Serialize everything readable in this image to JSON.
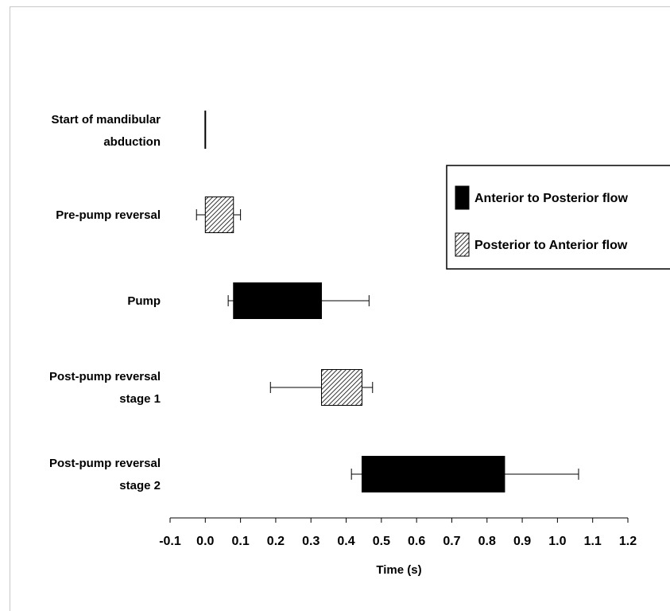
{
  "chart_data": {
    "type": "bar",
    "orientation": "horizontal",
    "title": "",
    "xlabel": "Time (s)",
    "ylabel": "",
    "xlim": [
      -0.1,
      1.2
    ],
    "xticks": [
      "-0.1",
      "0.0",
      "0.1",
      "0.2",
      "0.3",
      "0.4",
      "0.5",
      "0.6",
      "0.7",
      "0.8",
      "0.9",
      "1.0",
      "1.1",
      "1.2"
    ],
    "grid": false,
    "legend_position": "right",
    "categories": [
      {
        "label_lines": [
          "Start of mandibular",
          "abduction"
        ],
        "start": 0.0,
        "end": 0.0,
        "err_low": null,
        "err_high": null,
        "flow": "marker"
      },
      {
        "label_lines": [
          "Pre-pump reversal"
        ],
        "start": 0.0,
        "end": 0.08,
        "err_low": -0.025,
        "err_high": 0.1,
        "flow": "posterior_to_anterior"
      },
      {
        "label_lines": [
          "Pump"
        ],
        "start": 0.08,
        "end": 0.33,
        "err_low": 0.065,
        "err_high": 0.465,
        "flow": "anterior_to_posterior"
      },
      {
        "label_lines": [
          "Post-pump reversal",
          "stage 1"
        ],
        "start": 0.33,
        "end": 0.445,
        "err_low": 0.185,
        "err_high": 0.475,
        "flow": "posterior_to_anterior"
      },
      {
        "label_lines": [
          "Post-pump reversal",
          "stage 2"
        ],
        "start": 0.445,
        "end": 0.85,
        "err_low": 0.415,
        "err_high": 1.06,
        "flow": "anterior_to_posterior"
      }
    ],
    "legend": [
      {
        "key": "anterior_to_posterior",
        "label": "Anterior to Posterior flow",
        "fill": "solid",
        "color": "#000000"
      },
      {
        "key": "posterior_to_anterior",
        "label": "Posterior to Anterior flow",
        "fill": "hatched",
        "color": "#000000"
      }
    ]
  }
}
